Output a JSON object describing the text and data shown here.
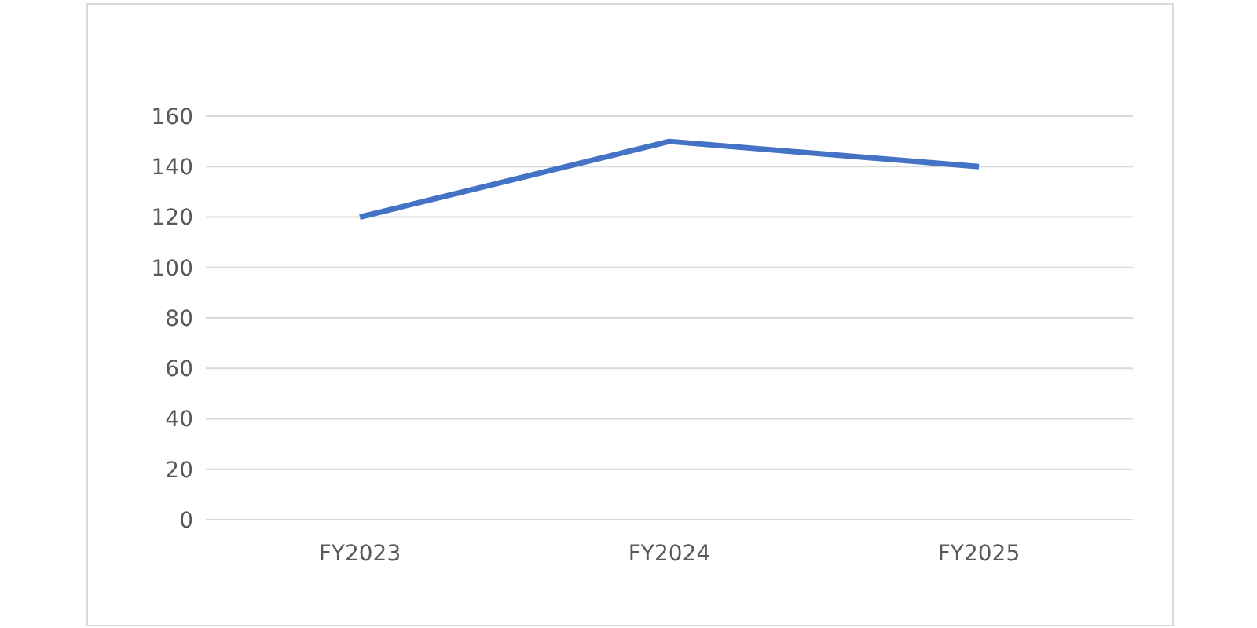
{
  "chart_data": {
    "type": "line",
    "categories": [
      "FY2023",
      "FY2024",
      "FY2025"
    ],
    "series": [
      {
        "color": "#4472c4",
        "values": [
          120,
          150,
          140
        ]
      }
    ],
    "ylim": [
      0,
      160
    ],
    "yticks": [
      0,
      20,
      40,
      60,
      80,
      100,
      120,
      140,
      160
    ],
    "grid": "y",
    "legend": false,
    "marker": "none",
    "line_style": "solid"
  }
}
